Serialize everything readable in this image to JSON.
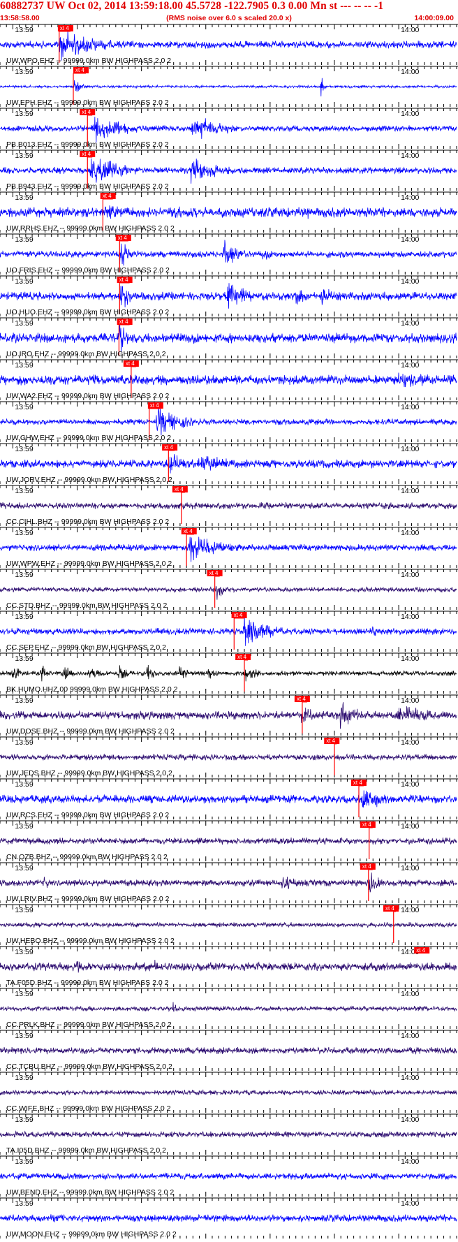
{
  "header": {
    "title": "60882737 UW Oct 02, 2014 13:59:18.00   45.5728 -122.7905  0.3 0.00 Mn st --- -- --   -1",
    "subtitle": "(RMS noise over 6.0 s scaled 20.0 x)",
    "start_time": "13:58:58.00",
    "end_time": "14:00:09.00"
  },
  "colors": {
    "header_red": "#e00000",
    "pick_red": "#ff0000",
    "trace_blue": "#0000ff",
    "trace_purple": "#2a0a6e",
    "trace_black": "#000000",
    "axis": "#000000"
  },
  "chart_data": {
    "type": "line",
    "x_axis": {
      "unit": "seconds after 13:58:58.00",
      "range": [
        0,
        71
      ],
      "labeled_ticks": [
        {
          "x": 2,
          "label": "13:59"
        },
        {
          "x": 62,
          "label": "14:00"
        }
      ],
      "minor_tick_interval": 1,
      "major_tick_interval": 10
    },
    "pick_tag": "xt 4",
    "traces": [
      {
        "label": "UW.WPO.EHZ -- 99999.0km BW  HIGHPASS  2.0  2",
        "color": "blue",
        "pick_x": 9.0,
        "onset_x": 9.2,
        "noise": 0.22,
        "events": [
          [
            9.4,
            1.0,
            6
          ],
          [
            14,
            0.5,
            5
          ],
          [
            24,
            0.2,
            3
          ]
        ]
      },
      {
        "label": "UW.EPH.EHZ -- 99999.0km BW  HIGHPASS  2.0  2",
        "color": "blue",
        "pick_x": 11.4,
        "onset_x": 11.4,
        "noise": 0.08,
        "events": [
          [
            11.6,
            0.5,
            1.2
          ],
          [
            50.1,
            1.0,
            0.3
          ]
        ]
      },
      {
        "label": "PB.B013.EHZ -- 99999.0km BW  HIGHPASS  2.0  2",
        "color": "blue",
        "pick_x": 12.4,
        "onset_x": 13.6,
        "noise": 0.18,
        "events": [
          [
            14.5,
            1.0,
            5
          ],
          [
            30,
            0.85,
            5
          ]
        ]
      },
      {
        "label": "PB.B943.EHZ -- 99999.0km BW  HIGHPASS  2.0  2",
        "color": "blue",
        "pick_x": 12.4,
        "onset_x": 13.6,
        "noise": 0.2,
        "events": [
          [
            14.2,
            1.0,
            5
          ],
          [
            29.8,
            0.9,
            4.5
          ]
        ]
      },
      {
        "label": "UW.RRHS.EHZ -- 99999.0km BW  HIGHPASS  2.0  2",
        "color": "blue",
        "pick_x": 15.6,
        "onset_x": 16.0,
        "noise": 0.3,
        "events": [
          [
            16.4,
            0.6,
            4
          ],
          [
            27,
            0.5,
            3
          ],
          [
            48,
            0.5,
            0.5
          ]
        ]
      },
      {
        "label": "UO.FRIS.EHZ -- 99999.0km BW  HIGHPASS  2.0  2",
        "color": "blue",
        "pick_x": 18.0,
        "onset_x": 18.6,
        "noise": 0.2,
        "events": [
          [
            18.8,
            0.9,
            1.5
          ],
          [
            35,
            0.9,
            2.5
          ],
          [
            41,
            0.45,
            2
          ]
        ]
      },
      {
        "label": "UO.HUO.EHZ -- 99999.0km BW  HIGHPASS  2.0  2",
        "color": "blue",
        "pick_x": 18.2,
        "onset_x": 18.6,
        "noise": 0.25,
        "events": [
          [
            18.8,
            1.0,
            1.5
          ],
          [
            35.5,
            1.0,
            3
          ],
          [
            46,
            0.7,
            2
          ],
          [
            50,
            0.7,
            2
          ]
        ]
      },
      {
        "label": "UO.IRO.EHZ -- 99999.0km BW  HIGHPASS  2.0  2",
        "color": "blue",
        "pick_x": 18.2,
        "onset_x": 18.5,
        "noise": 0.3,
        "events": [
          [
            18.6,
            1.0,
            1.2
          ],
          [
            30,
            0.5,
            2
          ]
        ]
      },
      {
        "label": "UW.WA2.EHZ -- 99999.0km BW  HIGHPASS  2.0  2",
        "color": "blue",
        "pick_x": 19.2,
        "onset_x": 20.4,
        "noise": 0.3,
        "events": [
          [
            21,
            0.4,
            3
          ],
          [
            62,
            0.6,
            8
          ]
        ]
      },
      {
        "label": "UW.GHW.EHZ -- 99999.0km BW  HIGHPASS  2.0  2",
        "color": "blue",
        "pick_x": 23.0,
        "onset_x": 23.2,
        "noise": 0.18,
        "events": [
          [
            24.5,
            1.0,
            4
          ]
        ]
      },
      {
        "label": "UW.JORV.EHZ -- 99999.0km BW  HIGHPASS  2.0  2",
        "color": "blue",
        "pick_x": 25.2,
        "onset_x": 26.2,
        "noise": 0.25,
        "events": [
          [
            26.5,
            0.9,
            2
          ],
          [
            31,
            0.7,
            5
          ]
        ]
      },
      {
        "label": "CC.CIHL.BHZ -- 99999.0km BW  HIGHPASS  2.0  2",
        "color": "purple",
        "pick_x": 26.8,
        "onset_x": 28.2,
        "noise": 0.2,
        "events": [
          [
            28.5,
            0.15,
            2
          ]
        ]
      },
      {
        "label": "UW.WPW.EHZ -- 99999.0km BW  HIGHPASS  2.0  2",
        "color": "blue",
        "pick_x": 28.2,
        "onset_x": 29.0,
        "noise": 0.2,
        "events": [
          [
            29.5,
            1.0,
            5
          ]
        ]
      },
      {
        "label": "CC.STD.BHZ -- 99999.0km BW  HIGHPASS  2.0  2",
        "color": "purple",
        "pick_x": 32.2,
        "onset_x": 33.4,
        "noise": 0.15,
        "events": [
          [
            33.7,
            0.6,
            1.5
          ],
          [
            52,
            0.25,
            1
          ]
        ]
      },
      {
        "label": "CC.SEP.EHZ -- 99999.0km BW  HIGHPASS  2.0  2",
        "color": "blue",
        "pick_x": 36.0,
        "onset_x": 36.4,
        "noise": 0.2,
        "events": [
          [
            38,
            1.0,
            4
          ],
          [
            58,
            0.4,
            1.5
          ]
        ]
      },
      {
        "label": "BK.HUMO.HHZ.00 99999.0km BW  HIGHPASS  2.0  2",
        "color": "black",
        "pick_x": 36.6,
        "onset_x": 38.0,
        "noise": 0.15,
        "events": [
          [
            2,
            0.5,
            1.5
          ],
          [
            6.5,
            0.5,
            1.5
          ],
          [
            10,
            0.5,
            1.5
          ],
          [
            14,
            0.5,
            1.5
          ],
          [
            18.5,
            0.5,
            1.5
          ],
          [
            23,
            0.5,
            1.5
          ],
          [
            28,
            0.5,
            1.5
          ],
          [
            32.5,
            0.5,
            1.5
          ],
          [
            38,
            0.6,
            2
          ]
        ]
      },
      {
        "label": "UW.DOSE.BHZ -- 99999.0km BW  HIGHPASS  2.0  2",
        "color": "purple",
        "pick_x": 45.8,
        "onset_x": 47.0,
        "noise": 0.25,
        "events": [
          [
            47,
            0.7,
            2
          ],
          [
            53,
            0.9,
            3
          ],
          [
            62,
            0.7,
            6
          ]
        ]
      },
      {
        "label": "UW.JEDS.BHZ -- 99999.0km BW  HIGHPASS  2.0  2",
        "color": "purple",
        "pick_x": 50.4,
        "onset_x": 52.0,
        "noise": 0.18,
        "events": []
      },
      {
        "label": "UW.RCS.EHZ -- 99999.0km BW  HIGHPASS  2.0  2",
        "color": "blue",
        "pick_x": 54.6,
        "onset_x": 55.8,
        "noise": 0.25,
        "events": [
          [
            56.5,
            0.8,
            4
          ]
        ]
      },
      {
        "label": "CN.QZB.BHZ -- 99999.0km BW  HIGHPASS  2.0  2",
        "color": "purple",
        "pick_x": 56.0,
        "onset_x": 57.4,
        "noise": 0.2,
        "events": []
      },
      {
        "label": "UW.LRIV.BHZ -- 99999.0km BW  HIGHPASS  2.0  2",
        "color": "purple",
        "pick_x": 56.0,
        "onset_x": 57.3,
        "noise": 0.2,
        "events": [
          [
            7,
            0.6,
            0.8
          ],
          [
            44,
            0.6,
            2
          ],
          [
            57.5,
            0.9,
            1.5
          ]
        ]
      },
      {
        "label": "UW.HEBO.BHZ -- 99999.0km BW  HIGHPASS  2.0  2",
        "color": "purple",
        "pick_x": 59.6,
        "onset_x": 61.2,
        "noise": 0.15,
        "events": []
      },
      {
        "label": "TA.F05D.BHZ -- 99999.0km BW  HIGHPASS  2.0  2",
        "color": "purple",
        "pick_x": 64.4,
        "onset_x": null,
        "noise": 0.25,
        "events": [
          [
            12,
            0.5,
            1.5
          ],
          [
            24,
            0.5,
            2
          ],
          [
            40,
            0.4,
            2
          ]
        ]
      },
      {
        "label": "CC.PRLK.BHZ -- 99999.0km BW  HIGHPASS  2.0  2",
        "color": "purple",
        "pick_x": null,
        "onset_x": null,
        "noise": 0.15,
        "events": [
          [
            27,
            0.5,
            1
          ]
        ]
      },
      {
        "label": "CC.TCBU.BHZ -- 99999.0km BW  HIGHPASS  2.0  2",
        "color": "purple",
        "pick_x": null,
        "onset_x": null,
        "noise": 0.2,
        "events": []
      },
      {
        "label": "CC.WIFE.BHZ -- 99999.0km BW  HIGHPASS  2.0  2",
        "color": "purple",
        "pick_x": null,
        "onset_x": null,
        "noise": 0.15,
        "events": []
      },
      {
        "label": "TA.I05D.BHZ -- 99999.0km BW  HIGHPASS  2.0  2",
        "color": "purple",
        "pick_x": null,
        "onset_x": null,
        "noise": 0.18,
        "events": []
      },
      {
        "label": "UW.BEND.EHZ -- 99999.0km BW  HIGHPASS  2.0  2",
        "color": "blue",
        "pick_x": null,
        "onset_x": null,
        "noise": 0.2,
        "events": []
      },
      {
        "label": "UW.MOON.EHZ -- 99999.0km BW  HIGHPASS  2.0  2",
        "color": "blue",
        "pick_x": null,
        "onset_x": null,
        "noise": 0.22,
        "events": []
      }
    ]
  }
}
